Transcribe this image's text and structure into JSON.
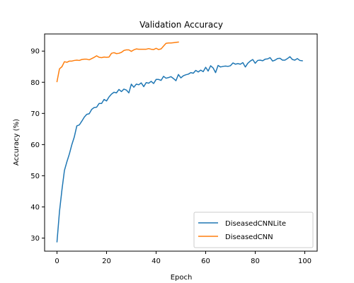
{
  "chart_data": {
    "type": "line",
    "title": "Validation Accuracy",
    "xlabel": "Epoch",
    "ylabel": "Accuracy (%)",
    "xlim": [
      -5,
      105
    ],
    "ylim": [
      25.8,
      95.5
    ],
    "xticks": [
      0,
      20,
      40,
      60,
      80,
      100
    ],
    "yticks": [
      30,
      40,
      50,
      60,
      70,
      80,
      90
    ],
    "grid": false,
    "legend_position": "lower-right",
    "series": [
      {
        "name": "DiseasedCNNLite",
        "color": "#1f77b4",
        "x": [
          0,
          1,
          2,
          3,
          4,
          5,
          6,
          7,
          8,
          9,
          10,
          11,
          12,
          13,
          14,
          15,
          16,
          17,
          18,
          19,
          20,
          21,
          22,
          23,
          24,
          25,
          26,
          27,
          28,
          29,
          30,
          31,
          32,
          33,
          34,
          35,
          36,
          37,
          38,
          39,
          40,
          41,
          42,
          43,
          44,
          45,
          46,
          47,
          48,
          49,
          50,
          51,
          52,
          53,
          54,
          55,
          56,
          57,
          58,
          59,
          60,
          61,
          62,
          63,
          64,
          65,
          66,
          67,
          68,
          69,
          70,
          71,
          72,
          73,
          74,
          75,
          76,
          77,
          78,
          79,
          80,
          81,
          82,
          83,
          84,
          85,
          86,
          87,
          88,
          89,
          90,
          91,
          92,
          93,
          94,
          95,
          96,
          97,
          98,
          99
        ],
        "y": [
          28.8,
          38.5,
          45.5,
          51.7,
          54.5,
          57.0,
          60.0,
          62.5,
          66.0,
          66.3,
          67.5,
          68.8,
          69.7,
          69.9,
          71.3,
          71.9,
          72.0,
          73.2,
          73.2,
          74.5,
          74.0,
          75.3,
          76.2,
          76.8,
          76.6,
          77.7,
          77.0,
          77.8,
          77.5,
          76.6,
          79.4,
          78.4,
          79.4,
          79.2,
          79.8,
          78.6,
          79.9,
          79.7,
          80.3,
          79.6,
          80.9,
          80.9,
          80.6,
          81.9,
          81.3,
          81.5,
          81.8,
          81.2,
          80.5,
          82.5,
          81.4,
          82.1,
          82.4,
          82.6,
          83.1,
          82.9,
          83.8,
          83.3,
          83.9,
          83.4,
          84.8,
          83.6,
          85.3,
          84.6,
          83.1,
          85.4,
          84.9,
          85.1,
          85.2,
          85.1,
          85.3,
          86.2,
          85.8,
          86.0,
          85.8,
          86.3,
          84.9,
          86.1,
          86.8,
          87.3,
          86.1,
          87.0,
          87.1,
          86.9,
          87.4,
          87.5,
          87.9,
          86.8,
          87.1,
          87.6,
          87.7,
          87.1,
          87.1,
          87.6,
          88.2,
          87.3,
          87.1,
          87.6,
          87.0,
          86.9
        ]
      },
      {
        "name": "DiseasedCNN",
        "color": "#ff7f0e",
        "x": [
          0,
          1,
          2,
          3,
          4,
          5,
          6,
          7,
          8,
          9,
          10,
          11,
          12,
          13,
          14,
          15,
          16,
          17,
          18,
          19,
          20,
          21,
          22,
          23,
          24,
          25,
          26,
          27,
          28,
          29,
          30,
          31,
          32,
          33,
          34,
          35,
          36,
          37,
          38,
          39,
          40,
          41,
          42,
          43,
          44,
          45,
          46,
          47,
          48,
          49
        ],
        "y": [
          80.2,
          84.3,
          85.0,
          86.6,
          86.4,
          86.8,
          86.8,
          87.0,
          87.1,
          87.0,
          87.3,
          87.4,
          87.4,
          87.2,
          87.6,
          88.0,
          88.5,
          88.0,
          87.9,
          88.1,
          88.0,
          88.1,
          89.3,
          89.5,
          89.2,
          89.3,
          89.6,
          90.2,
          90.4,
          90.4,
          89.9,
          90.4,
          90.7,
          90.6,
          90.6,
          90.6,
          90.6,
          90.8,
          90.6,
          90.5,
          90.9,
          90.5,
          90.7,
          91.6,
          92.5,
          92.6,
          92.6,
          92.7,
          92.8,
          92.9
        ]
      }
    ]
  }
}
